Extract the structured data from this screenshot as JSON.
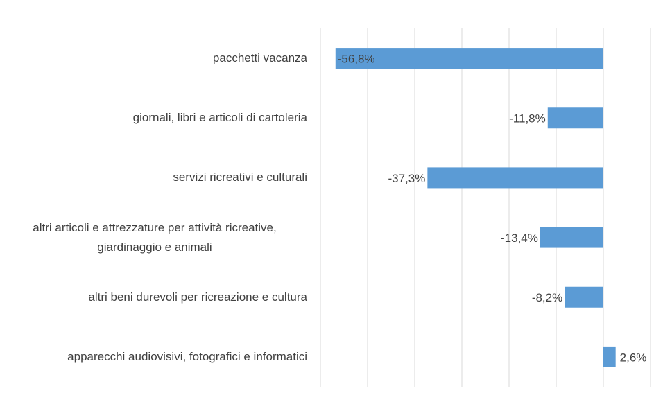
{
  "chart_data": {
    "type": "bar",
    "orientation": "horizontal",
    "categories": [
      "pacchetti vacanza",
      "giornali, libri e articoli di cartoleria",
      "servizi ricreativi e culturali",
      "altri articoli e attrezzature per attività ricreative, giardinaggio e animali",
      "altri beni durevoli per ricreazione e cultura",
      "apparecchi audiovisivi, fotografici e informatici"
    ],
    "values": [
      -56.8,
      -11.8,
      -37.3,
      -13.4,
      -8.2,
      2.6
    ],
    "value_labels": [
      "-56,8%",
      "-11,8%",
      "-37,3%",
      "-13,4%",
      "-8,2%",
      "2,6%"
    ],
    "color": "#5b9bd5",
    "xlim": [
      -60,
      10
    ],
    "xticks": [
      -60,
      -50,
      -40,
      -30,
      -20,
      -10,
      0,
      10
    ],
    "grid": true
  }
}
